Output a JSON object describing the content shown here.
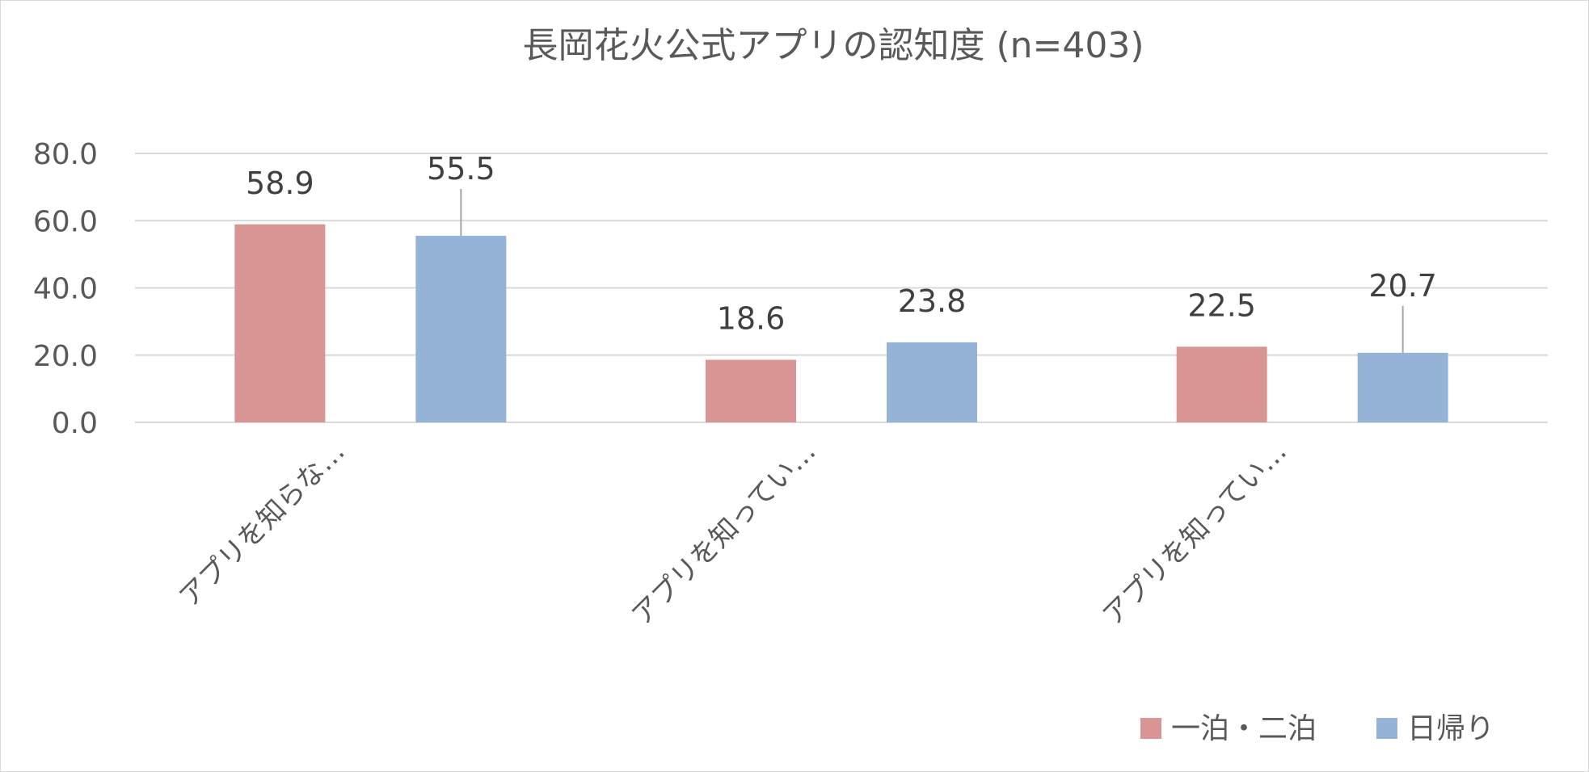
{
  "chart_data": {
    "type": "bar",
    "title": "長岡花火公式アプリの認知度 (n=403)",
    "categories": [
      "アプリを知らな…",
      "アプリを知ってい…",
      "アプリを知ってい…"
    ],
    "series": [
      {
        "name": "一泊・二泊",
        "values": [
          58.9,
          18.6,
          22.5
        ],
        "color": "#d99594"
      },
      {
        "name": "日帰り",
        "values": [
          55.5,
          23.8,
          20.7
        ],
        "color": "#95b3d7"
      }
    ],
    "yticks": [
      "0.0",
      "20.0",
      "40.0",
      "60.0",
      "80.0"
    ],
    "ylim": [
      0,
      80
    ],
    "grid": true,
    "legend": "bottom-right",
    "data_labels": true
  }
}
